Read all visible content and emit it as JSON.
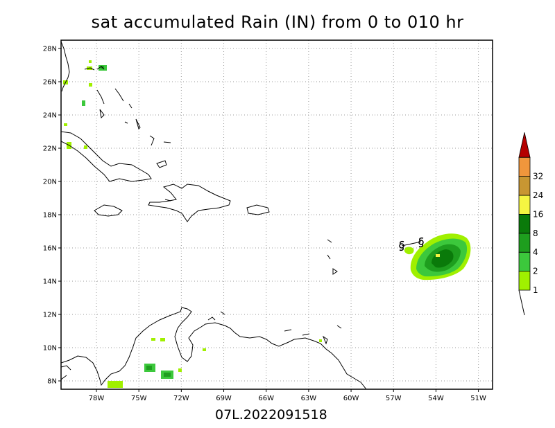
{
  "title": "sat accumulated Rain (IN) from 0 to 010 hr",
  "storm_id": "07L.2022091518",
  "map": {
    "lon_range": [
      -80.5,
      -50.0
    ],
    "lat_range": [
      7.5,
      28.5
    ],
    "x_ticks": [
      "78W",
      "75W",
      "72W",
      "69W",
      "66W",
      "63W",
      "60W",
      "57W",
      "54W",
      "51W"
    ],
    "x_tick_values": [
      -78,
      -75,
      -72,
      -69,
      -66,
      -63,
      -60,
      -57,
      -54,
      -51
    ],
    "y_ticks": [
      "8N",
      "10N",
      "12N",
      "14N",
      "16N",
      "18N",
      "20N",
      "22N",
      "24N",
      "26N",
      "28N"
    ],
    "y_tick_values": [
      8,
      10,
      12,
      14,
      16,
      18,
      20,
      22,
      24,
      26,
      28
    ],
    "grid": true,
    "grid_style": "dotted"
  },
  "colorbar": {
    "labels": [
      "1",
      "2",
      "4",
      "8",
      "16",
      "24",
      "32"
    ],
    "colors": [
      "#a0f000",
      "#3cc83c",
      "#1e9e1e",
      "#0a7a0a",
      "#f5f542",
      "#c89632",
      "#f0963c",
      "#b40000"
    ]
  },
  "storm_track": {
    "points": [
      [
        -56.4,
        16.3
      ],
      [
        -55.0,
        16.4
      ]
    ],
    "symbol": "hurricane-symbol"
  }
}
